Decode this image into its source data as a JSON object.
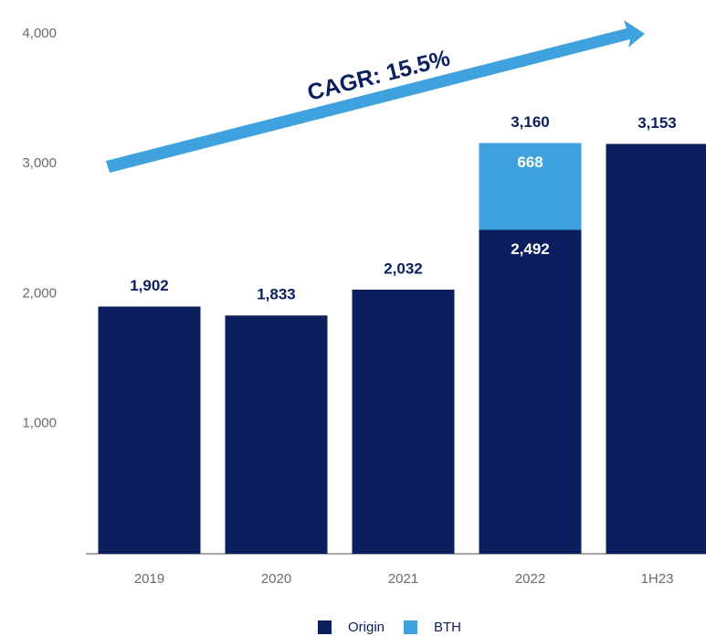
{
  "chart_data": {
    "type": "stacked_bar",
    "categories": [
      "2019",
      "2020",
      "2021",
      "2022",
      "1H23"
    ],
    "series": [
      {
        "name": "Origin",
        "color": "#0b1f5e",
        "values": [
          1902,
          1833,
          2032,
          2492,
          3153
        ],
        "value_labels": [
          "1,902",
          "1,833",
          "2,032",
          "2,492",
          "3,153"
        ]
      },
      {
        "name": "BTH",
        "color": "#3fa2de",
        "values": [
          null,
          null,
          null,
          668,
          null
        ]
      }
    ],
    "totals": [
      null,
      null,
      null,
      3160,
      null
    ],
    "total_value_labels": [
      null,
      null,
      null,
      "3,160",
      null
    ],
    "annotation": "CAGR:  15.5%",
    "ylim": [
      0,
      4000
    ],
    "yticks": [
      {
        "value": 1000,
        "label": "1,000"
      },
      {
        "value": 2000,
        "label": "2,000"
      },
      {
        "value": 3000,
        "label": "3,000"
      },
      {
        "value": 4000,
        "label": "4,000"
      }
    ],
    "grid": false,
    "legend": "bottom"
  }
}
